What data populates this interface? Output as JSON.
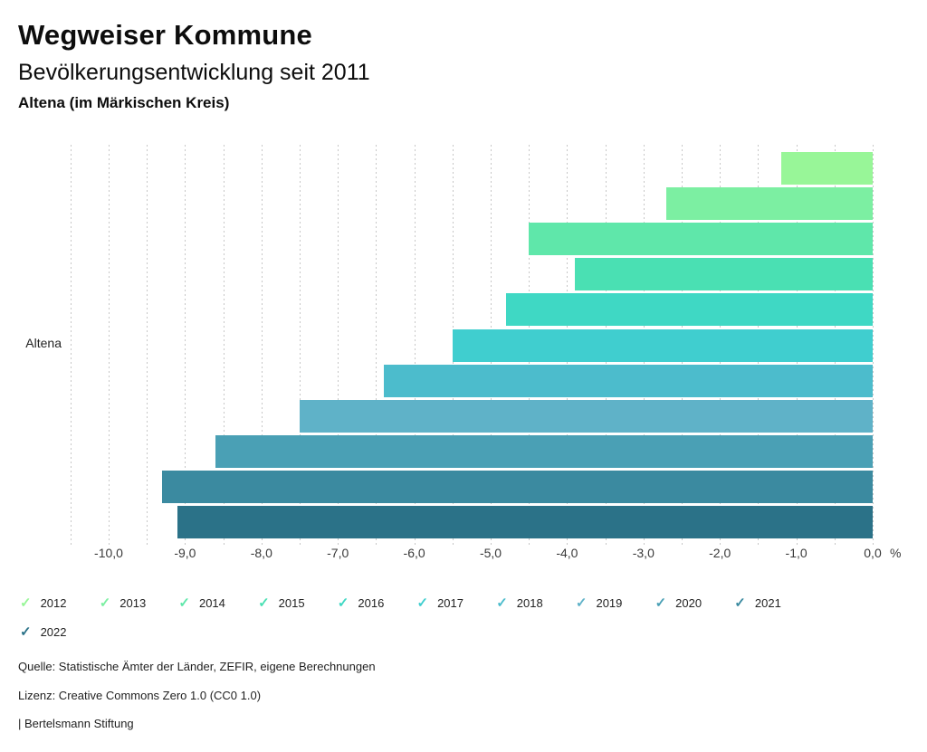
{
  "header": {
    "title": "Wegweiser Kommune",
    "subtitle": "Bevölkerungsentwicklung seit 2011",
    "region": "Altena (im Märkischen Kreis)"
  },
  "chart_data": {
    "type": "bar",
    "orientation": "horizontal",
    "title": "Bevölkerungsentwicklung seit 2011",
    "region": "Altena (im Märkischen Kreis)",
    "category_label": "Altena",
    "unit": "%",
    "xlim": [
      -10.5,
      0.0
    ],
    "grid": true,
    "gridline_step": 0.5,
    "legend_position": "bottom",
    "x_ticks": [
      -10,
      -9,
      -8,
      -7,
      -6,
      -5,
      -4,
      -3,
      -2,
      -1,
      0
    ],
    "x_tick_labels": [
      "-10,0",
      "-9,0",
      "-8,0",
      "-7,0",
      "-6,0",
      "-5,0",
      "-4,0",
      "-3,0",
      "-2,0",
      "-1,0",
      "0,0"
    ],
    "series": [
      {
        "name": "2012",
        "value": -1.2,
        "color": "#98F698"
      },
      {
        "name": "2013",
        "value": -2.7,
        "color": "#7CEFA2"
      },
      {
        "name": "2014",
        "value": -4.5,
        "color": "#5FE7AA"
      },
      {
        "name": "2015",
        "value": -3.9,
        "color": "#4AE0B3"
      },
      {
        "name": "2016",
        "value": -4.8,
        "color": "#3FD8C4"
      },
      {
        "name": "2017",
        "value": -5.5,
        "color": "#40CECF"
      },
      {
        "name": "2018",
        "value": -6.4,
        "color": "#4CBCCC"
      },
      {
        "name": "2019",
        "value": -7.5,
        "color": "#5FB2C8"
      },
      {
        "name": "2020",
        "value": -8.6,
        "color": "#4AA0B5"
      },
      {
        "name": "2021",
        "value": -9.3,
        "color": "#3B8AA0"
      },
      {
        "name": "2022",
        "value": -9.1,
        "color": "#2B7288"
      }
    ]
  },
  "footer": {
    "source": "Quelle: Statistische Ämter der Länder, ZEFIR, eigene Berechnungen",
    "license": "Lizenz: Creative Commons Zero 1.0 (CC0 1.0)",
    "brand": "| Bertelsmann Stiftung"
  }
}
